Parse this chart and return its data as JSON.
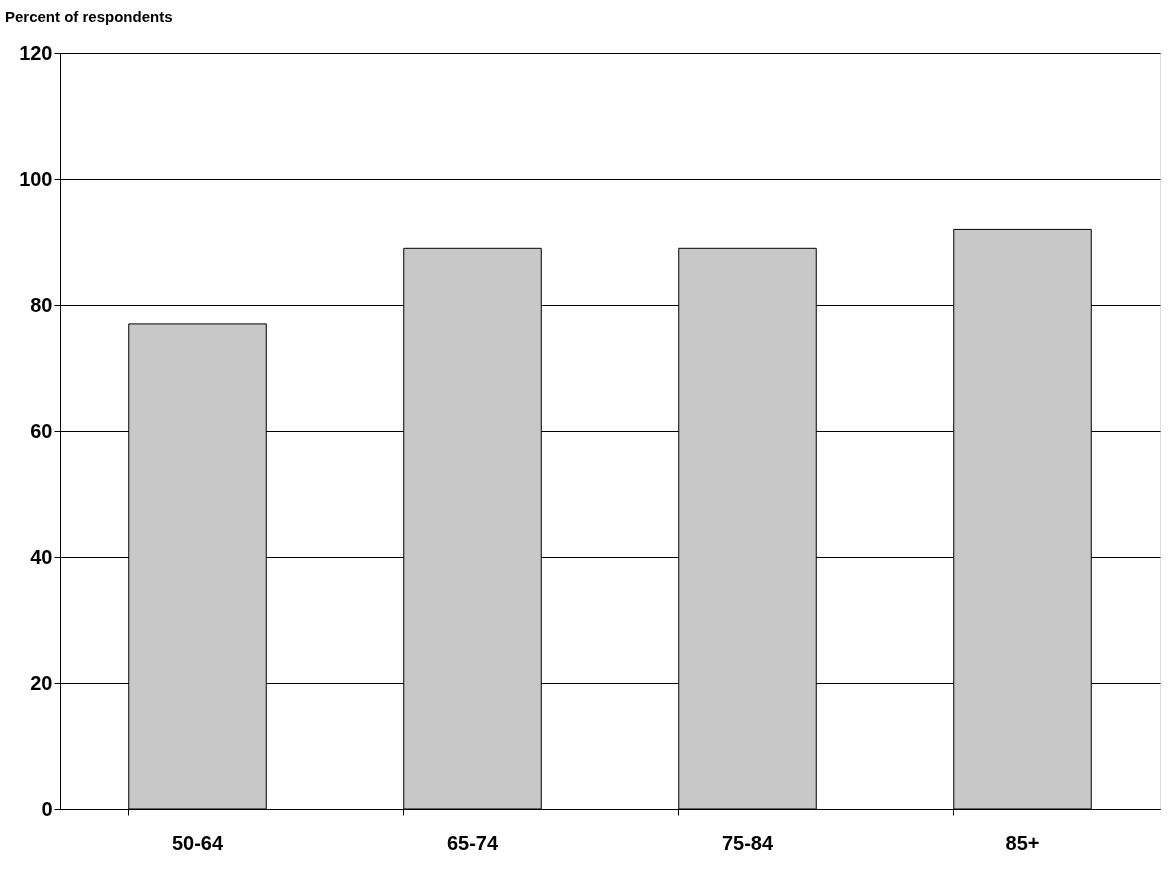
{
  "chart_data": {
    "type": "bar",
    "title": "Percent of respondents",
    "categories": [
      "50-64",
      "65-74",
      "75-84",
      "85+"
    ],
    "values": [
      77,
      89,
      89,
      92
    ],
    "color": "#c8c8c8",
    "ylim": [
      0,
      120
    ],
    "yticks": [
      0,
      20,
      40,
      60,
      80,
      100,
      120
    ],
    "grid": "y"
  }
}
